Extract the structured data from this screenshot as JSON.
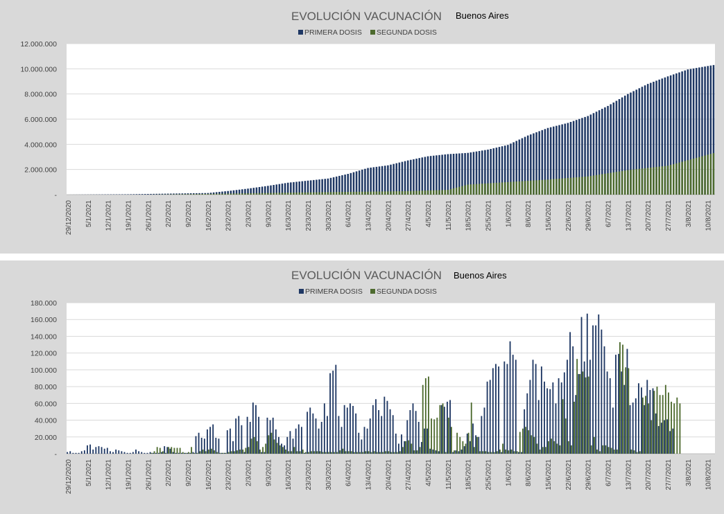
{
  "colors": {
    "primera": "#1f3864",
    "segunda": "#4e6b2f",
    "panel_bg": "#d9d9d9",
    "plot_bg": "#ffffff"
  },
  "chart_data": [
    {
      "id": "cumulative",
      "type": "bar",
      "title": "EVOLUCIÓN VACUNACIÓN",
      "subtitle": "Buenos Aires",
      "legend_position": "top",
      "grid": true,
      "ylim": [
        0,
        12000000
      ],
      "yticks": [
        "-",
        "2.000.000",
        "4.000.000",
        "6.000.000",
        "8.000.000",
        "10.000.000",
        "12.000.000"
      ],
      "ytick_values": [
        0,
        2000000,
        4000000,
        6000000,
        8000000,
        10000000,
        12000000
      ],
      "xtick_labels": [
        "29/12/2020",
        "5/1/2021",
        "12/1/2021",
        "19/1/2021",
        "26/1/2021",
        "2/2/2021",
        "9/2/2021",
        "16/2/2021",
        "23/2/2021",
        "2/3/2021",
        "9/3/2021",
        "16/3/2021",
        "23/3/2021",
        "30/3/2021",
        "6/4/2021",
        "13/4/2021",
        "20/4/2021",
        "27/4/2021",
        "4/5/2021",
        "11/5/2021",
        "18/5/2021",
        "25/5/2021",
        "1/6/2021",
        "8/6/2021",
        "15/6/2021",
        "22/6/2021",
        "29/6/2021",
        "6/7/2021",
        "13/7/2021",
        "20/7/2021",
        "27/7/2021",
        "3/8/2021",
        "10/8/2021"
      ],
      "x_start": "29/12/2020",
      "x_end": "12/8/2021",
      "series": [
        {
          "name": "PRIMERA DOSIS",
          "color": "#1f3864",
          "anchors": [
            [
              "29/12/2020",
              0
            ],
            [
              "19/1/2021",
              30000
            ],
            [
              "16/2/2021",
              130000
            ],
            [
              "23/2/2021",
              290000
            ],
            [
              "2/3/2021",
              480000
            ],
            [
              "9/3/2021",
              700000
            ],
            [
              "16/3/2021",
              950000
            ],
            [
              "30/3/2021",
              1280000
            ],
            [
              "6/4/2021",
              1650000
            ],
            [
              "13/4/2021",
              2120000
            ],
            [
              "20/4/2021",
              2330000
            ],
            [
              "27/4/2021",
              2720000
            ],
            [
              "4/5/2021",
              3050000
            ],
            [
              "11/5/2021",
              3220000
            ],
            [
              "18/5/2021",
              3320000
            ],
            [
              "25/5/2021",
              3580000
            ],
            [
              "1/6/2021",
              3950000
            ],
            [
              "8/6/2021",
              4700000
            ],
            [
              "15/6/2021",
              5300000
            ],
            [
              "22/6/2021",
              5700000
            ],
            [
              "29/6/2021",
              6250000
            ],
            [
              "6/7/2021",
              7050000
            ],
            [
              "13/7/2021",
              8000000
            ],
            [
              "20/7/2021",
              8800000
            ],
            [
              "27/7/2021",
              9400000
            ],
            [
              "3/8/2021",
              9950000
            ],
            [
              "12/8/2021",
              10300000
            ]
          ]
        },
        {
          "name": "SEGUNDA DOSIS",
          "color": "#4e6b2f",
          "anchors": [
            [
              "29/12/2020",
              0
            ],
            [
              "26/1/2021",
              0
            ],
            [
              "16/2/2021",
              60000
            ],
            [
              "16/3/2021",
              160000
            ],
            [
              "13/4/2021",
              240000
            ],
            [
              "27/4/2021",
              280000
            ],
            [
              "11/5/2021",
              380000
            ],
            [
              "18/5/2021",
              800000
            ],
            [
              "1/6/2021",
              1000000
            ],
            [
              "15/6/2021",
              1200000
            ],
            [
              "29/6/2021",
              1450000
            ],
            [
              "13/7/2021",
              1950000
            ],
            [
              "27/7/2021",
              2300000
            ],
            [
              "12/8/2021",
              3300000
            ]
          ]
        }
      ]
    },
    {
      "id": "daily",
      "type": "bar",
      "title": "EVOLUCIÓN VACUNACIÓN",
      "subtitle": "Buenos Aires",
      "legend_position": "top",
      "grid": true,
      "ylim": [
        0,
        180000
      ],
      "yticks": [
        "-",
        "20.000",
        "40.000",
        "60.000",
        "80.000",
        "100.000",
        "120.000",
        "140.000",
        "160.000",
        "180.000"
      ],
      "ytick_values": [
        0,
        20000,
        40000,
        60000,
        80000,
        100000,
        120000,
        140000,
        160000,
        180000
      ],
      "xtick_labels": [
        "29/12/2020",
        "5/1/2021",
        "12/1/2021",
        "19/1/2021",
        "26/1/2021",
        "2/2/2021",
        "9/2/2021",
        "16/2/2021",
        "23/2/2021",
        "2/3/2021",
        "9/3/2021",
        "16/3/2021",
        "23/3/2021",
        "30/3/2021",
        "6/4/2021",
        "13/4/2021",
        "20/4/2021",
        "27/4/2021",
        "4/5/2021",
        "11/5/2021",
        "18/5/2021",
        "25/5/2021",
        "1/6/2021",
        "8/6/2021",
        "15/6/2021",
        "22/6/2021",
        "29/6/2021",
        "6/7/2021",
        "13/7/2021",
        "20/7/2021",
        "27/7/2021",
        "3/8/2021",
        "10/8/2021"
      ],
      "x_start": "29/12/2020",
      "x_end": "12/8/2021",
      "series": [
        {
          "name": "PRIMERA DOSIS",
          "color": "#1f3864",
          "values": [
            2000,
            3000,
            1000,
            1000,
            1000,
            3000,
            4000,
            10000,
            11000,
            5000,
            8000,
            9000,
            8000,
            6000,
            7000,
            3000,
            2000,
            5000,
            4000,
            3000,
            2000,
            1000,
            1000,
            2000,
            5000,
            3000,
            2000,
            1000,
            1000,
            2000,
            1000,
            1000,
            1000,
            2000,
            9000,
            8000,
            6000,
            2000,
            1000,
            1000,
            1000,
            1000,
            1000,
            1000,
            2000,
            21000,
            25000,
            19000,
            18000,
            29000,
            32000,
            35000,
            19000,
            18000,
            1000,
            1000,
            28000,
            30000,
            15000,
            42000,
            45000,
            34000,
            2000,
            44000,
            38000,
            61000,
            58000,
            44000,
            2000,
            2000,
            43000,
            40000,
            43000,
            29000,
            20000,
            12000,
            10000,
            20000,
            27000,
            18000,
            30000,
            35000,
            32000,
            1000,
            50000,
            55000,
            48000,
            42000,
            30000,
            38000,
            60000,
            45000,
            96000,
            99000,
            106000,
            45000,
            32000,
            58000,
            55000,
            60000,
            57000,
            48000,
            25000,
            17000,
            32000,
            30000,
            42000,
            58000,
            65000,
            52000,
            45000,
            68000,
            63000,
            53000,
            46000,
            24000,
            12000,
            23000,
            15000,
            40000,
            52000,
            60000,
            51000,
            38000,
            14000,
            30000,
            30000,
            6000,
            5000,
            4000,
            3000,
            58000,
            56000,
            62000,
            64000,
            2000,
            4000,
            3000,
            5000,
            9000,
            24000,
            15000,
            36000,
            22000,
            20000,
            45000,
            55000,
            86000,
            88000,
            102000,
            107000,
            104000,
            2000,
            110000,
            107000,
            134000,
            118000,
            112000,
            2000,
            2000,
            53000,
            72000,
            88000,
            112000,
            107000,
            64000,
            104000,
            86000,
            78000,
            77000,
            85000,
            60000,
            90000,
            85000,
            97000,
            112000,
            145000,
            128000,
            70000,
            95000,
            163000,
            110000,
            167000,
            112000,
            153000,
            153000,
            166000,
            148000,
            128000,
            98000,
            90000,
            55000,
            118000,
            119000,
            98000,
            82000,
            125000,
            58000,
            61000,
            66000,
            84000,
            79000,
            58000,
            88000,
            76000,
            78000,
            48000,
            33000,
            37000,
            40000,
            41000,
            27000,
            30000
          ]
        },
        {
          "name": "SEGUNDA DOSIS",
          "color": "#4e6b2f",
          "values": [
            0,
            0,
            0,
            0,
            0,
            0,
            0,
            0,
            0,
            0,
            0,
            0,
            0,
            0,
            0,
            0,
            0,
            0,
            0,
            0,
            0,
            0,
            0,
            0,
            0,
            0,
            0,
            0,
            0,
            1000,
            3000,
            8000,
            7000,
            3000,
            1000,
            8000,
            8000,
            7000,
            7000,
            7000,
            2000,
            1000,
            2000,
            8000,
            1000,
            1000,
            3000,
            5000,
            3000,
            5000,
            6000,
            4000,
            2000,
            1000,
            1000,
            1000,
            2000,
            3000,
            3000,
            4000,
            5000,
            5000,
            7000,
            8000,
            18000,
            20000,
            15000,
            5000,
            8000,
            12000,
            22000,
            25000,
            17000,
            13000,
            10000,
            8000,
            5000,
            3000,
            3000,
            8000,
            3000,
            3000,
            5000,
            2000,
            2000,
            3000,
            3000,
            3000,
            3000,
            2000,
            2000,
            2000,
            2000,
            2000,
            2000,
            4000,
            6000,
            3000,
            3000,
            3000,
            2000,
            2000,
            2000,
            2000,
            3000,
            3000,
            2000,
            3000,
            2000,
            2000,
            2000,
            3000,
            3000,
            2000,
            2000,
            2000,
            3000,
            8000,
            15000,
            16000,
            12000,
            4000,
            4000,
            8000,
            82000,
            90000,
            92000,
            42000,
            41000,
            43000,
            58000,
            60000,
            2000,
            43000,
            32000,
            4000,
            25000,
            20000,
            15000,
            12000,
            25000,
            61000,
            8000,
            20000,
            3000,
            3000,
            3000,
            2000,
            2000,
            2000,
            3000,
            5000,
            12000,
            5000,
            4000,
            5000,
            3000,
            3000,
            26000,
            30000,
            32000,
            28000,
            22000,
            20000,
            12000,
            5000,
            8000,
            8000,
            15000,
            18000,
            15000,
            12000,
            10000,
            65000,
            42000,
            15000,
            10000,
            62000,
            113000,
            95000,
            98000,
            91000,
            92000,
            10000,
            20000,
            5000,
            3000,
            10000,
            10000,
            8000,
            7000,
            5000,
            5000,
            133000,
            130000,
            103000,
            102000,
            5000,
            4000,
            2000,
            3000,
            67000,
            69000,
            60000,
            40000,
            75000,
            80000,
            70000,
            70000,
            82000,
            73000,
            62000,
            60000,
            67000,
            60000
          ]
        }
      ]
    }
  ]
}
